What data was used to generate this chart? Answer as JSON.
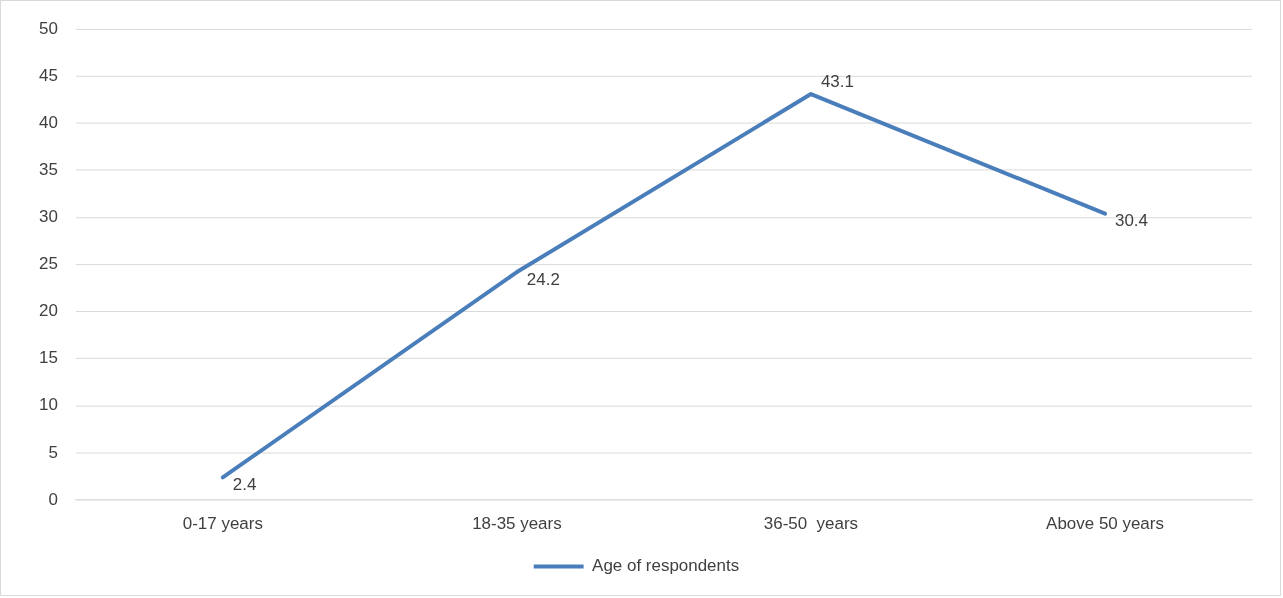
{
  "chart_data": {
    "type": "line",
    "categories": [
      "0-17 years",
      "18-35 years",
      "36-50  years",
      "Above 50 years"
    ],
    "series": [
      {
        "name": "Age of respondents",
        "color": "#4a7ebb",
        "values": [
          2.4,
          24.2,
          43.1,
          30.4
        ]
      }
    ],
    "ylim": [
      0,
      50
    ],
    "yticks": [
      0,
      5,
      10,
      15,
      20,
      25,
      30,
      35,
      40,
      45,
      50
    ],
    "grid": "y",
    "legend": "bottom",
    "data_labels": true,
    "marker": "none",
    "line_style": "solid"
  }
}
